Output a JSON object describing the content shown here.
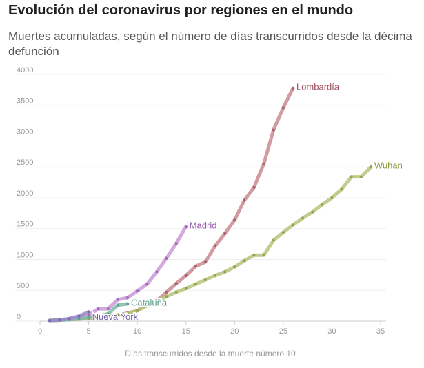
{
  "chart_data": {
    "type": "line",
    "title": "Evolución del coronavirus por regiones en el mundo",
    "subtitle": "Muertes acumuladas, según el número de días transcurridos desde la décima defunción",
    "x_label": "Días transcurridos desde la muerte número 10",
    "xlim": [
      0,
      35
    ],
    "xticks": [
      0,
      5,
      10,
      15,
      20,
      25,
      30,
      35
    ],
    "ylim": [
      0,
      4000
    ],
    "yticks": [
      0,
      500,
      1000,
      1500,
      2000,
      2500,
      3000,
      3500,
      4000
    ],
    "grid": true,
    "series": [
      {
        "name": "Lombardía",
        "color": "#c98a92",
        "label_color": "#a05060",
        "x": [
          1,
          2,
          3,
          4,
          5,
          6,
          7,
          8,
          9,
          10,
          11,
          12,
          13,
          14,
          15,
          16,
          17,
          18,
          19,
          20,
          21,
          22,
          23,
          24,
          25,
          26
        ],
        "values": [
          10,
          15,
          25,
          35,
          45,
          60,
          80,
          100,
          130,
          170,
          260,
          330,
          470,
          610,
          740,
          890,
          960,
          1220,
          1420,
          1640,
          1960,
          2170,
          2550,
          3100,
          3460,
          3776
        ]
      },
      {
        "name": "Wuhan",
        "color": "#b5c47a",
        "label_color": "#8c9a3e",
        "x": [
          1,
          2,
          3,
          4,
          5,
          6,
          7,
          8,
          9,
          10,
          11,
          12,
          13,
          14,
          15,
          16,
          17,
          18,
          19,
          20,
          21,
          22,
          23,
          24,
          25,
          26,
          27,
          28,
          29,
          30,
          31,
          32,
          33,
          34
        ],
        "values": [
          15,
          20,
          25,
          35,
          45,
          60,
          80,
          100,
          120,
          170,
          250,
          330,
          400,
          470,
          530,
          600,
          670,
          740,
          800,
          880,
          980,
          1070,
          1070,
          1310,
          1440,
          1560,
          1670,
          1770,
          1890,
          2000,
          2140,
          2340,
          2340,
          2500
        ]
      },
      {
        "name": "Madrid",
        "color": "#c99ad6",
        "label_color": "#9b59b0",
        "x": [
          1,
          2,
          3,
          4,
          5,
          6,
          7,
          8,
          9,
          10,
          11,
          12,
          13,
          14,
          15
        ],
        "values": [
          10,
          20,
          40,
          80,
          100,
          200,
          200,
          350,
          380,
          490,
          600,
          800,
          1020,
          1260,
          1530
        ]
      },
      {
        "name": "Cataluña",
        "color": "#7fb8a8",
        "label_color": "#5a9a88",
        "x": [
          1,
          2,
          3,
          4,
          5,
          6,
          7,
          8,
          9
        ],
        "values": [
          10,
          15,
          25,
          40,
          60,
          80,
          120,
          260,
          280
        ]
      },
      {
        "name": "Nueva York",
        "color": "#9a8ac8",
        "label_color": "#6f60a8",
        "x": [
          1,
          2,
          3,
          4,
          5
        ],
        "values": [
          10,
          20,
          40,
          80,
          150
        ]
      }
    ]
  }
}
